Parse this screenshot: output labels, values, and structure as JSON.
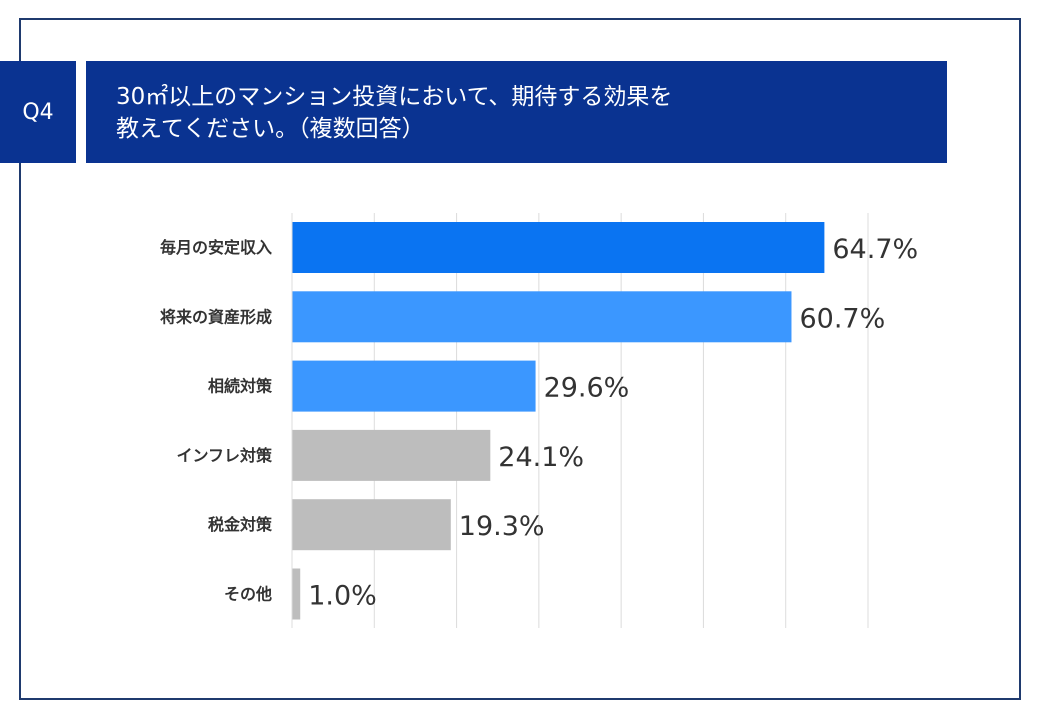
{
  "question": {
    "number": "Q4",
    "title_line1": "30㎡以上のマンション投資において、期待する効果を",
    "title_line2": "教えてください。（複数回答）"
  },
  "colors": {
    "header_bg": "#0a3391",
    "frame_border": "#1f3a6e",
    "bar_top": "#0a74f2",
    "bar_accent": "#3b97ff",
    "bar_other": "#bdbdbd",
    "grid": "#dcdcdc"
  },
  "chart_data": {
    "type": "bar",
    "orientation": "horizontal",
    "title": "",
    "xlabel": "",
    "ylabel": "",
    "xlim": [
      0,
      70
    ],
    "grid": true,
    "legend": "none",
    "categories": [
      "毎月の安定収入",
      "将来の資産形成",
      "相続対策",
      "インフレ対策",
      "税金対策",
      "その他"
    ],
    "values": [
      64.7,
      60.7,
      29.6,
      24.1,
      19.3,
      1.0
    ],
    "value_labels": [
      "64.7%",
      "60.7%",
      "29.6%",
      "24.1%",
      "19.3%",
      "1.0%"
    ],
    "bar_colors": [
      "#0a74f2",
      "#3b97ff",
      "#3b97ff",
      "#bdbdbd",
      "#bdbdbd",
      "#bdbdbd"
    ]
  }
}
